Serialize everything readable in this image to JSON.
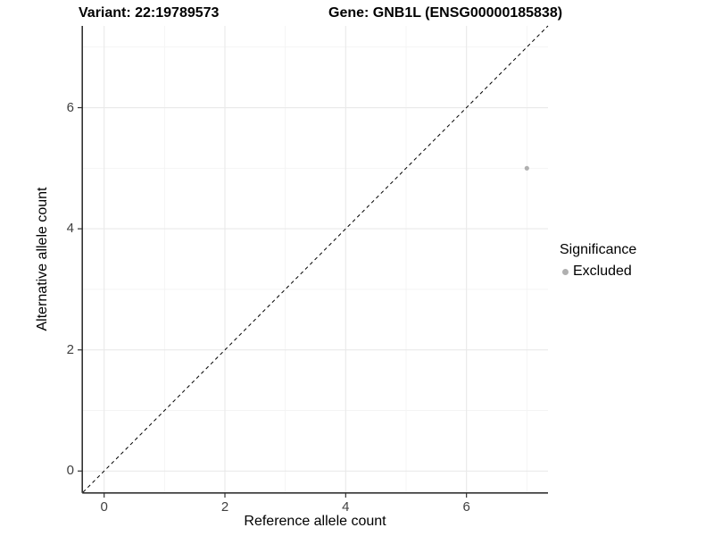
{
  "titles": {
    "variant": "Variant: 22:19789573",
    "gene": "Gene: GNB1L (ENSG00000185838)"
  },
  "chart_data": {
    "type": "scatter",
    "title_left": "Variant: 22:19789573",
    "title_right": "Gene: GNB1L (ENSG00000185838)",
    "xlabel": "Reference allele count",
    "ylabel": "Alternative allele count",
    "xlim": [
      -0.35,
      7.35
    ],
    "ylim": [
      -0.35,
      7.35
    ],
    "x_major_ticks": [
      0,
      2,
      4,
      6
    ],
    "y_major_ticks": [
      0,
      2,
      4,
      6
    ],
    "x_minor_gridlines": [
      1,
      3,
      5,
      7
    ],
    "y_minor_gridlines": [
      1,
      3,
      5,
      7
    ],
    "grid": "on",
    "points": [
      {
        "x": 7,
        "y": 5,
        "series": "Excluded"
      }
    ],
    "identity_line": {
      "slope": 1,
      "intercept": 0,
      "style": "dashed"
    },
    "legend": {
      "title": "Significance",
      "position": "right",
      "items": [
        {
          "label": "Excluded",
          "color": "#b0b0b0"
        }
      ]
    },
    "colors": {
      "point": "#b0b0b0",
      "grid_major": "#e9e9e9",
      "grid_minor": "#f3f3f3",
      "axis_line": "#333333",
      "identity_line": "#000000",
      "tick_mark": "#333333"
    }
  }
}
